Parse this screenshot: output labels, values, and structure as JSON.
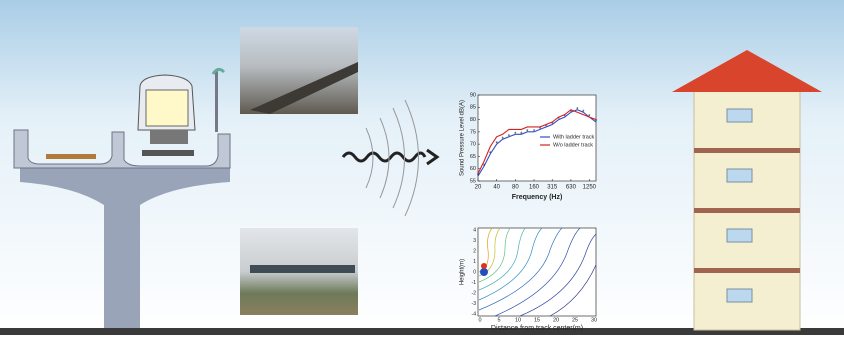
{
  "spectrum": {
    "y_label": "Sound Pressure Level dB(A)",
    "x_label": "Frequency (Hz)",
    "x": [
      20,
      25,
      31.5,
      40,
      50,
      63,
      80,
      100,
      125,
      160,
      200,
      250,
      315,
      400,
      500,
      630,
      800,
      1000,
      1250,
      1600
    ],
    "xlim": [
      20,
      1600
    ],
    "xticks": [
      20,
      40,
      80,
      160,
      315,
      630,
      1250
    ],
    "xscale": "log",
    "ylim": [
      55,
      90
    ],
    "yticks": [
      55,
      60,
      65,
      70,
      75,
      80,
      85,
      90
    ],
    "series": [
      {
        "name": "With ladder track",
        "color": "#3050c8",
        "values": [
          57,
          61,
          66,
          70,
          72,
          73,
          74,
          74,
          75,
          75,
          76,
          77,
          78,
          80,
          81,
          83,
          84,
          83,
          81,
          79
        ]
      },
      {
        "name": "W/o ladder track",
        "color": "#d42020",
        "values": [
          58,
          63,
          69,
          73,
          74,
          76,
          76,
          76,
          77,
          77,
          77,
          78,
          79,
          81,
          82,
          84,
          83,
          82,
          81,
          80
        ]
      }
    ]
  },
  "contour": {
    "y_label": "Height(m)",
    "x_label": "Distance from track center(m)",
    "xticks": [
      0,
      5,
      10,
      15,
      20,
      25,
      30
    ],
    "yticks": [
      4,
      3,
      2,
      1,
      0,
      -1,
      -2,
      -3,
      -4
    ]
  }
}
